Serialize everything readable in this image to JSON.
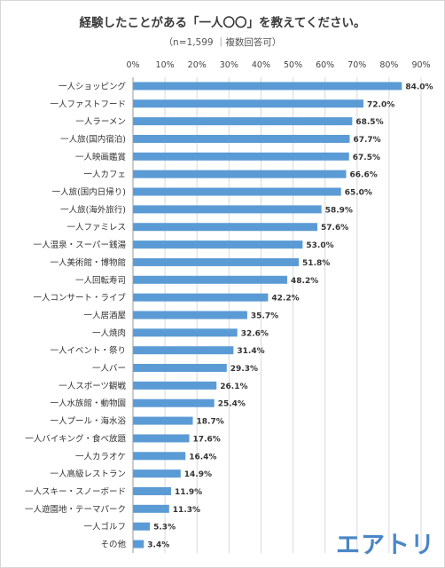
{
  "title": "経験したことがある「一人〇〇」を教えてください。",
  "subtitle": "（n=1,599 ｜複数回答可）",
  "logo_text": "エアトリ",
  "colors": {
    "bar": "#5b9bd5",
    "grid": "#d9d9d9",
    "accent": "#4a86c6"
  },
  "chart_data": {
    "type": "bar",
    "orientation": "horizontal",
    "title": "経験したことがある「一人〇〇」を教えてください。",
    "xlim": [
      0,
      90
    ],
    "x_ticks": [
      "0%",
      "10%",
      "20%",
      "30%",
      "40%",
      "50%",
      "60%",
      "70%",
      "80%",
      "90%"
    ],
    "grid": true,
    "categories": [
      "一人ショッピング",
      "一人ファストフード",
      "一人ラーメン",
      "一人旅(国内宿泊)",
      "一人映画鑑賞",
      "一人カフェ",
      "一人旅(国内日帰り)",
      "一人旅(海外旅行)",
      "一人ファミレス",
      "一人温泉・スーパー銭湯",
      "一人美術館・博物館",
      "一人回転寿司",
      "一人コンサート・ライブ",
      "一人居酒屋",
      "一人焼肉",
      "一人イベント・祭り",
      "一人バー",
      "一人スポーツ観戦",
      "一人水族館・動物園",
      "一人プール・海水浴",
      "一人バイキング・食べ放題",
      "一人カラオケ",
      "一人高級レストラン",
      "一人スキー・スノーボード",
      "一人遊園地・テーマパーク",
      "一人ゴルフ",
      "その他"
    ],
    "values": [
      84.0,
      72.0,
      68.5,
      67.7,
      67.5,
      66.6,
      65.0,
      58.9,
      57.6,
      53.0,
      51.8,
      48.2,
      42.2,
      35.7,
      32.6,
      31.4,
      29.3,
      26.1,
      25.4,
      18.7,
      17.6,
      16.4,
      14.9,
      11.9,
      11.3,
      5.3,
      3.4
    ],
    "value_labels": [
      "84.0%",
      "72.0%",
      "68.5%",
      "67.7%",
      "67.5%",
      "66.6%",
      "65.0%",
      "58.9%",
      "57.6%",
      "53.0%",
      "51.8%",
      "48.2%",
      "42.2%",
      "35.7%",
      "32.6%",
      "31.4%",
      "29.3%",
      "26.1%",
      "25.4%",
      "18.7%",
      "17.6%",
      "16.4%",
      "14.9%",
      "11.9%",
      "11.3%",
      "5.3%",
      "3.4%"
    ]
  }
}
